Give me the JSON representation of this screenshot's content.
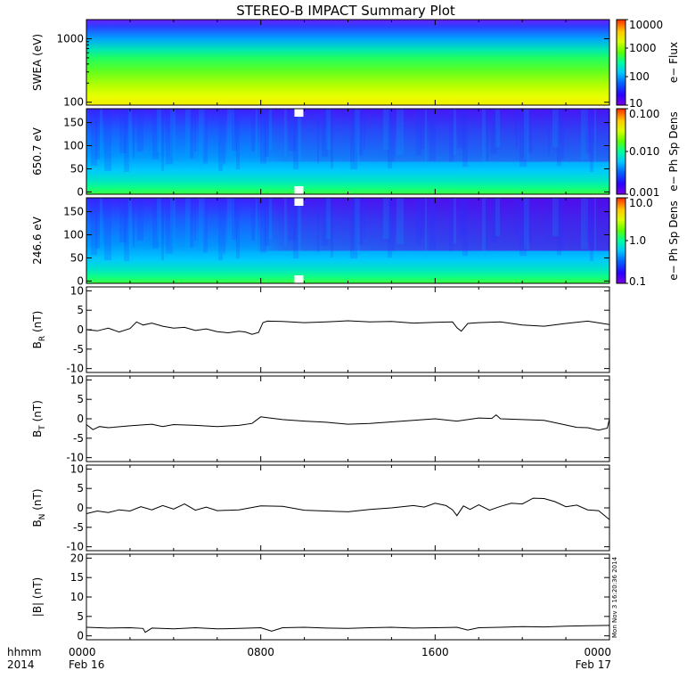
{
  "title": "STEREO-B IMPACT Summary Plot",
  "chart_data": {
    "type": "line",
    "title": "STEREO-B IMPACT Summary Plot",
    "x_ticks": [
      "0000",
      "0800",
      "1600",
      "0000"
    ],
    "x_date_labels": [
      "Feb 16",
      "Feb 17"
    ],
    "x_corner_labels": [
      "hhmm",
      "2014"
    ],
    "xlim_hours": [
      0,
      24
    ],
    "timestamp": "Mon Nov 3 16:20:36 2014",
    "panels": [
      {
        "type": "heatmap",
        "ylabel": "SWEA (eV)",
        "yscale": "log",
        "ylim": [
          90,
          2000
        ],
        "yticks": [
          100,
          1000
        ],
        "colorbar": {
          "label": "e− Flux",
          "scale": "log",
          "range": [
            10,
            10000
          ],
          "ticks": [
            10,
            100,
            1000,
            10000
          ]
        }
      },
      {
        "type": "heatmap",
        "ylabel": "650.7 eV",
        "yscale": "linear",
        "ylim": [
          -5,
          180
        ],
        "yticks": [
          0,
          50,
          100,
          150
        ],
        "colorbar": {
          "label": "e− Ph Sp Dens",
          "scale": "log",
          "range": [
            0.001,
            0.1
          ],
          "ticks": [
            "0.001",
            "0.010",
            "0.100"
          ]
        }
      },
      {
        "type": "heatmap",
        "ylabel": "246.6 eV",
        "yscale": "linear",
        "ylim": [
          -5,
          180
        ],
        "yticks": [
          0,
          50,
          100,
          150
        ],
        "colorbar": {
          "label": "e− Ph Sp Dens",
          "scale": "log",
          "range": [
            0.1,
            10
          ],
          "ticks": [
            "0.1",
            "1.0",
            "10.0"
          ]
        }
      },
      {
        "type": "line",
        "ylabel": "B_R (nT)",
        "ylim": [
          -11,
          11
        ],
        "yticks": [
          -10,
          -5,
          0,
          5,
          10
        ],
        "series": [
          {
            "x": [
              0,
              0.5,
              1,
              1.5,
              2,
              2.3,
              2.6,
              3,
              3.5,
              4,
              4.5,
              5,
              5.5,
              6,
              6.5,
              7,
              7.3,
              7.6,
              7.9,
              8.1,
              8.3,
              9,
              10,
              11,
              12,
              13,
              14,
              15,
              16,
              16.8,
              17,
              17.2,
              17.5,
              18,
              19,
              20,
              21,
              22,
              23,
              24
            ],
            "y": [
              0,
              -0.3,
              0.4,
              -0.6,
              0.3,
              2.0,
              1.2,
              1.7,
              0.9,
              0.4,
              0.6,
              -0.2,
              0.2,
              -0.5,
              -0.8,
              -0.4,
              -0.6,
              -1.2,
              -0.7,
              1.8,
              2.2,
              2.1,
              1.8,
              2.0,
              2.3,
              2.0,
              2.1,
              1.7,
              1.9,
              2.0,
              0.5,
              -0.4,
              1.6,
              1.8,
              2.0,
              1.2,
              0.9,
              1.6,
              2.2,
              1.3
            ]
          }
        ]
      },
      {
        "type": "line",
        "ylabel": "B_T (nT)",
        "ylim": [
          -11,
          11
        ],
        "yticks": [
          -10,
          -5,
          0,
          5,
          10
        ],
        "series": [
          {
            "x": [
              0,
              0.3,
              0.6,
              1,
              2,
              3,
              3.5,
              4,
              5,
              6,
              7,
              7.6,
              8,
              8.3,
              9,
              10,
              11,
              12,
              13,
              14,
              15,
              16,
              17,
              18,
              18.6,
              18.8,
              19,
              20,
              21,
              21.5,
              22,
              22.5,
              23,
              23.5,
              23.9,
              24
            ],
            "y": [
              -1.5,
              -2.8,
              -2.0,
              -2.3,
              -1.8,
              -1.4,
              -2.0,
              -1.5,
              -1.7,
              -2.0,
              -1.7,
              -1.2,
              0.5,
              0.3,
              -0.2,
              -0.6,
              -0.9,
              -1.4,
              -1.2,
              -0.8,
              -0.4,
              0.0,
              -0.6,
              0.2,
              0.1,
              1.0,
              0.0,
              -0.2,
              -0.4,
              -1.0,
              -1.6,
              -2.2,
              -2.3,
              -2.9,
              -2.4,
              0.0
            ]
          }
        ]
      },
      {
        "type": "line",
        "ylabel": "B_N (nT)",
        "ylim": [
          -11,
          11
        ],
        "yticks": [
          -10,
          -5,
          0,
          5,
          10
        ],
        "series": [
          {
            "x": [
              0,
              0.5,
              1,
              1.5,
              2,
              2.5,
              3,
              3.5,
              4,
              4.5,
              5,
              5.5,
              6,
              7,
              8,
              9,
              10,
              11,
              12,
              13,
              14,
              15,
              15.5,
              16,
              16.5,
              16.8,
              17,
              17.3,
              17.6,
              18,
              18.5,
              19,
              19.5,
              20,
              20.5,
              21,
              21.5,
              22,
              22.5,
              23,
              23.5,
              24
            ],
            "y": [
              -1.5,
              -0.8,
              -1.2,
              -0.5,
              -0.8,
              0.3,
              -0.5,
              0.6,
              -0.3,
              1.0,
              -0.6,
              0.2,
              -0.7,
              -0.5,
              0.5,
              0.4,
              -0.6,
              -0.8,
              -1.0,
              -0.4,
              0.0,
              0.6,
              0.2,
              1.2,
              0.6,
              -0.5,
              -2.0,
              0.5,
              -0.4,
              0.8,
              -0.6,
              0.4,
              1.2,
              1.0,
              2.5,
              2.4,
              1.6,
              0.3,
              0.7,
              -0.5,
              -0.7,
              -3.0
            ]
          }
        ]
      },
      {
        "type": "line",
        "ylabel": "|B| (nT)",
        "ylim": [
          -1,
          21
        ],
        "yticks": [
          0,
          5,
          10,
          15,
          20
        ],
        "series": [
          {
            "x": [
              0,
              1,
              2,
              2.6,
              2.7,
              3,
              4,
              5,
              6,
              7,
              8,
              8.5,
              9,
              10,
              11,
              12,
              13,
              14,
              15,
              16,
              17,
              17.5,
              18,
              19,
              20,
              21,
              22,
              23,
              24
            ],
            "y": [
              2.2,
              2.0,
              2.1,
              1.9,
              0.9,
              2.0,
              1.8,
              2.1,
              1.8,
              1.9,
              2.1,
              1.2,
              2.1,
              2.2,
              2.0,
              1.9,
              2.1,
              2.2,
              2.0,
              2.1,
              2.2,
              1.5,
              2.1,
              2.2,
              2.4,
              2.3,
              2.5,
              2.6,
              2.7
            ]
          }
        ]
      }
    ]
  }
}
